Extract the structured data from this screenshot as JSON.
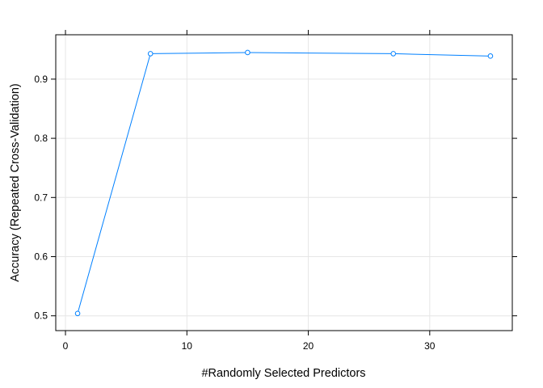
{
  "chart_data": {
    "type": "line",
    "xlabel": "#Randomly Selected Predictors",
    "ylabel": "Accuracy (Repeated Cross-Validation)",
    "xlim": [
      -0.8,
      36.8
    ],
    "ylim": [
      0.475,
      0.975
    ],
    "x_ticks": [
      0,
      10,
      20,
      30
    ],
    "y_ticks": [
      0.5,
      0.6,
      0.7,
      0.8,
      0.9
    ],
    "x_tick_labels": [
      "0",
      "10",
      "20",
      "30"
    ],
    "y_tick_labels": [
      "0.5",
      "0.6",
      "0.7",
      "0.8",
      "0.9"
    ],
    "grid": true,
    "series": [
      {
        "x": [
          1,
          7,
          15,
          27,
          35
        ],
        "y": [
          0.504,
          0.943,
          0.945,
          0.943,
          0.939
        ],
        "color": "#0080ff",
        "marker": "open-circle"
      }
    ]
  }
}
